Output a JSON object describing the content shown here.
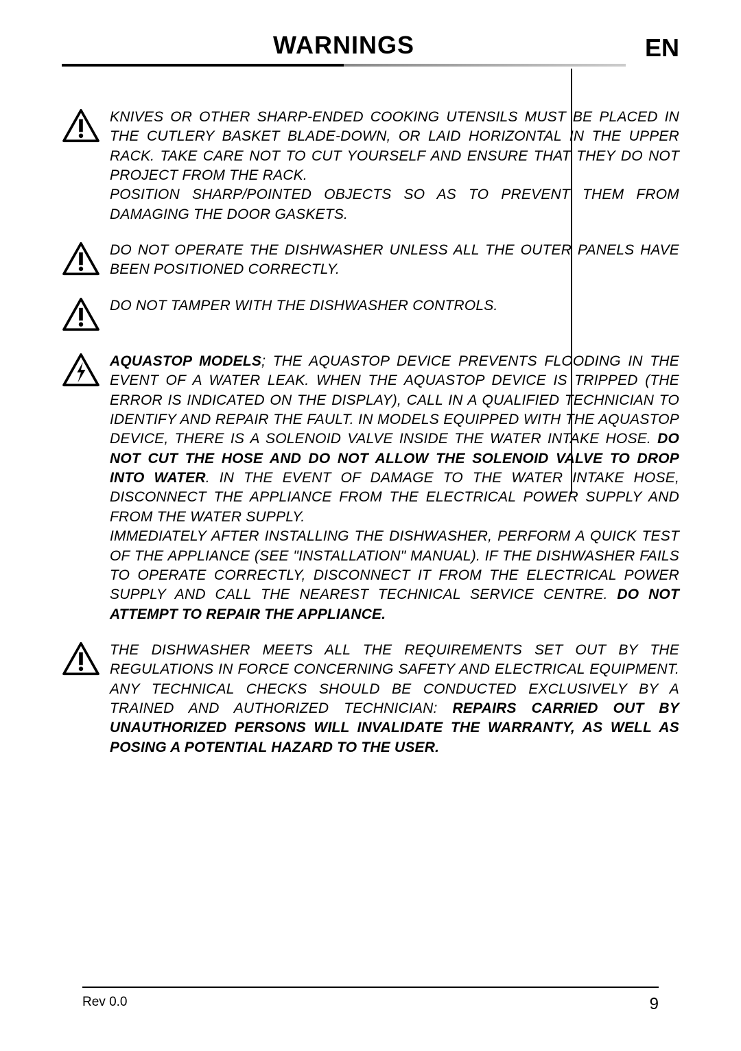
{
  "header": {
    "title": "WARNINGS",
    "lang": "EN"
  },
  "warnings": [
    {
      "icon": "exclaim",
      "parts": [
        {
          "text": "KNIVES OR OTHER SHARP-ENDED COOKING UTENSILS MUST BE PLACED IN THE CUTLERY BASKET BLADE-DOWN, OR LAID HORIZONTAL IN THE UPPER RACK. TAKE CARE NOT TO CUT YOURSELF AND ENSURE THAT THEY DO NOT PROJECT FROM THE RACK.",
          "bold": false
        },
        {
          "text": " ",
          "bold": false
        },
        {
          "break": true
        },
        {
          "text": "POSITION SHARP/POINTED OBJECTS SO AS TO PREVENT THEM FROM DAMAGING THE DOOR GASKETS.",
          "bold": false
        }
      ]
    },
    {
      "icon": "exclaim",
      "parts": [
        {
          "text": "DO NOT OPERATE THE DISHWASHER UNLESS ALL THE OUTER PANELS HAVE BEEN POSITIONED CORRECTLY.",
          "bold": false
        }
      ]
    },
    {
      "icon": "exclaim",
      "parts": [
        {
          "text": "DO NOT TAMPER WITH THE DISHWASHER CONTROLS.",
          "bold": false
        }
      ]
    },
    {
      "icon": "bolt",
      "parts": [
        {
          "text": "AQUASTOP MODELS",
          "bold": true
        },
        {
          "text": "; THE AQUASTOP DEVICE PREVENTS FLOODING IN THE EVENT OF A WATER LEAK. WHEN THE AQUASTOP DEVICE IS TRIPPED (THE ERROR IS INDICATED ON THE DISPLAY), CALL IN A QUALIFIED TECHNICIAN TO IDENTIFY AND REPAIR THE FAULT. IN MODELS EQUIPPED WITH THE AQUASTOP DEVICE, THERE IS A SOLENOID VALVE INSIDE THE WATER INTAKE HOSE. ",
          "bold": false
        },
        {
          "text": "DO NOT CUT THE HOSE AND DO NOT ALLOW THE SOLENOID VALVE TO DROP INTO WATER",
          "bold": true
        },
        {
          "text": ". IN THE EVENT OF DAMAGE TO THE WATER INTAKE HOSE, DISCONNECT THE APPLIANCE FROM THE ELECTRICAL POWER SUPPLY AND FROM THE WATER SUPPLY.",
          "bold": false
        },
        {
          "break": true
        },
        {
          "text": "IMMEDIATELY AFTER INSTALLING THE DISHWASHER, PERFORM A QUICK TEST OF THE APPLIANCE (SEE \"INSTALLATION\" MANUAL).  IF THE DISHWASHER FAILS TO OPERATE CORRECTLY, DISCONNECT IT FROM THE ELECTRICAL POWER SUPPLY AND CALL THE NEAREST TECHNICAL SERVICE CENTRE. ",
          "bold": false
        },
        {
          "text": "DO NOT ATTEMPT TO REPAIR THE APPLIANCE.",
          "bold": true
        }
      ]
    },
    {
      "icon": "exclaim",
      "parts": [
        {
          "text": "THE DISHWASHER MEETS ALL THE REQUIREMENTS SET OUT BY THE REGULATIONS IN FORCE CONCERNING SAFETY AND ELECTRICAL EQUIPMENT. ANY TECHNICAL CHECKS SHOULD BE CONDUCTED EXCLUSIVELY BY A TRAINED AND AUTHORIZED TECHNICIAN: ",
          "bold": false
        },
        {
          "text": "REPAIRS CARRIED OUT BY UNAUTHORIZED PERSONS WILL INVALIDATE THE WARRANTY, AS WELL AS POSING A POTENTIAL HAZARD TO THE USER.",
          "bold": true
        }
      ]
    }
  ],
  "footer": {
    "rev": "Rev 0.0",
    "page": "9"
  },
  "colors": {
    "text": "#000000",
    "background": "#ffffff"
  }
}
